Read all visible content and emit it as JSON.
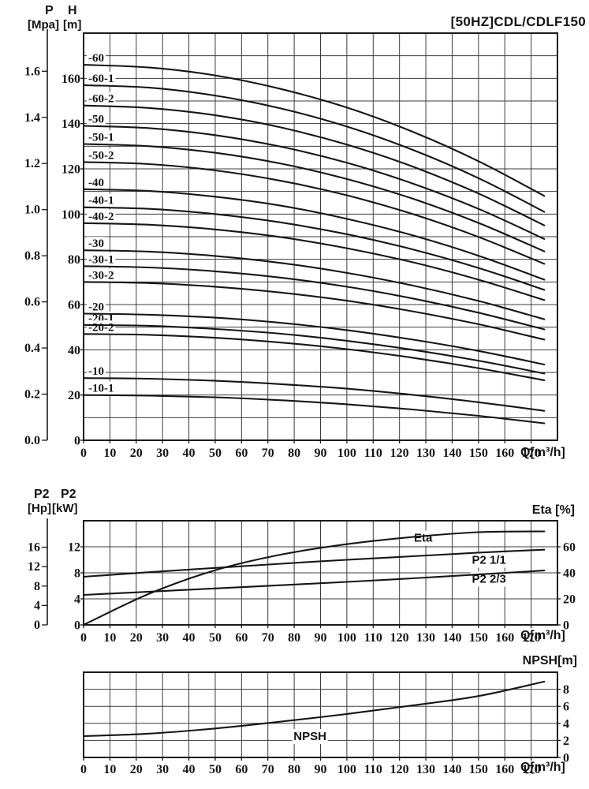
{
  "header": {
    "p": "P",
    "p_unit": "[Mpa]",
    "h": "H",
    "h_unit": "[m]",
    "title": "[50HZ]CDL/CDLF150"
  },
  "power_header": {
    "hp": "P2",
    "hp_unit": "[Hp]",
    "kw": "P2",
    "kw_unit": "[kW]",
    "eta_axis": "Eta [%]"
  },
  "npsh_header": {
    "axis": "NPSH[m]"
  },
  "q_label": "Q[m³/h]",
  "chart_data": [
    {
      "type": "line",
      "title": "[50HZ]CDL/CDLF150",
      "xlabel": "Q[m³/h]",
      "ylabel_left_outer": "P [Mpa]",
      "ylabel_left_inner": "H [m]",
      "xlim": [
        0,
        180
      ],
      "ylim": [
        0,
        180
      ],
      "grid_step_x": 10,
      "grid_step_y": 10,
      "x_ticks": [
        0,
        10,
        20,
        30,
        40,
        50,
        60,
        70,
        80,
        90,
        100,
        110,
        120,
        130,
        140,
        150,
        160,
        170
      ],
      "h_ticks": [
        0,
        20,
        40,
        60,
        80,
        100,
        120,
        140,
        160
      ],
      "p_ticks": [
        "0.0",
        "0.2",
        "0.4",
        "0.6",
        "0.8",
        "1.0",
        "1.2",
        "1.4",
        "1.6"
      ],
      "m_per_mpa": 101.97,
      "q_points": [
        0,
        25,
        50,
        75,
        100,
        125,
        150,
        175
      ],
      "series": [
        {
          "name": "-60",
          "h": [
            166,
            164.8,
            161.3,
            155.3,
            147.1,
            136.4,
            123.4,
            108
          ]
        },
        {
          "name": "-60-1",
          "h": [
            157,
            155.9,
            152.4,
            146.7,
            138.7,
            128.4,
            115.9,
            101
          ]
        },
        {
          "name": "-60-2",
          "h": [
            148,
            146.9,
            143.7,
            138.3,
            130.7,
            121,
            109.1,
            95
          ]
        },
        {
          "name": "-50",
          "h": [
            139,
            138,
            134.9,
            129.8,
            122.7,
            113.5,
            102.3,
            89
          ]
        },
        {
          "name": "-50-1",
          "h": [
            131,
            130,
            127.1,
            122.3,
            115.5,
            106.8,
            96.1,
            83.5
          ]
        },
        {
          "name": "-50-2",
          "h": [
            123,
            122.1,
            119.3,
            114.7,
            108.3,
            100,
            89.9,
            78
          ]
        },
        {
          "name": "-40",
          "h": [
            111,
            110.2,
            107.7,
            103.7,
            97.9,
            90.6,
            81.6,
            71
          ]
        },
        {
          "name": "-40-1",
          "h": [
            103,
            102.3,
            100,
            96.3,
            91.1,
            84.4,
            76.2,
            66.5
          ]
        },
        {
          "name": "-40-2",
          "h": [
            96,
            95.3,
            93.2,
            89.8,
            84.9,
            78.7,
            71,
            62
          ]
        },
        {
          "name": "-30",
          "h": [
            84,
            83.4,
            81.5,
            78.4,
            74,
            68.4,
            61.6,
            53.5
          ]
        },
        {
          "name": "-30-1",
          "h": [
            77,
            76.4,
            74.7,
            71.9,
            67.9,
            62.7,
            56.4,
            49
          ]
        },
        {
          "name": "-30-2",
          "h": [
            70,
            69.5,
            67.9,
            65.3,
            61.7,
            57,
            51.3,
            44.5
          ]
        },
        {
          "name": "-20",
          "h": [
            56,
            55.5,
            54.2,
            51.9,
            48.7,
            44.5,
            39.5,
            33.5
          ]
        },
        {
          "name": "-20-1",
          "h": [
            51,
            50.6,
            49.2,
            47.1,
            44,
            40,
            35.2,
            29.5
          ]
        },
        {
          "name": "-20-2",
          "h": [
            47,
            46.6,
            45.3,
            43.2,
            40.3,
            36.5,
            31.9,
            26.5
          ]
        },
        {
          "name": "-10",
          "h": [
            27.5,
            27.2,
            26.3,
            24.8,
            22.8,
            20.1,
            16.8,
            13
          ]
        },
        {
          "name": "-10-1",
          "h": [
            20,
            19.7,
            19,
            17.7,
            15.9,
            13.6,
            10.8,
            7.5
          ]
        }
      ]
    },
    {
      "type": "line",
      "xlabel": "Q[m³/h]",
      "ylabel_left_outer": "P2 [Hp]",
      "ylabel_left_inner": "P2 [kW]",
      "ylabel_right": "Eta [%]",
      "xlim": [
        0,
        180
      ],
      "ylim_kw": [
        0,
        16
      ],
      "grid_step_x": 10,
      "grid_step_kw": 4,
      "x_ticks": [
        0,
        10,
        20,
        30,
        40,
        50,
        60,
        70,
        80,
        90,
        100,
        110,
        120,
        130,
        140,
        150,
        160,
        170
      ],
      "kw_ticks": [
        0,
        4,
        8,
        12
      ],
      "hp_ticks": [
        0,
        4,
        8,
        12,
        16
      ],
      "eta_ticks": [
        0,
        20,
        40,
        60
      ],
      "kw_per_hp": 0.7457,
      "kw_per_eta_pct": 0.2,
      "q_points": [
        0,
        25,
        50,
        75,
        100,
        125,
        150,
        175
      ],
      "series": [
        {
          "name": "Eta",
          "scale": "eta",
          "values": [
            0,
            24,
            42,
            54,
            62,
            67.5,
            71.2,
            71.8
          ]
        },
        {
          "name": "P2 1/1",
          "scale": "kw",
          "values": [
            7.4,
            8.1,
            8.75,
            9.4,
            10,
            10.55,
            11.1,
            11.55
          ]
        },
        {
          "name": "P2 2/3",
          "scale": "kw",
          "values": [
            4.6,
            5.1,
            5.6,
            6.1,
            6.6,
            7.15,
            7.75,
            8.35
          ]
        }
      ],
      "annotations": [
        {
          "text": "Eta",
          "q": 129,
          "kw": 13.4
        },
        {
          "text": "P2 1/1",
          "q": 154,
          "kw": 10.0
        },
        {
          "text": "P2 2/3",
          "q": 154,
          "kw": 7.1
        }
      ]
    },
    {
      "type": "line",
      "xlabel": "Q[m³/h]",
      "ylabel_right": "NPSH[m]",
      "xlim": [
        0,
        180
      ],
      "ylim": [
        0,
        10
      ],
      "grid_step_x": 10,
      "grid_step_y": 2,
      "x_ticks": [
        0,
        10,
        20,
        30,
        40,
        50,
        60,
        70,
        80,
        90,
        100,
        110,
        120,
        130,
        140,
        150,
        160,
        170
      ],
      "npsh_ticks": [
        0,
        2,
        4,
        6,
        8
      ],
      "q_points": [
        0,
        25,
        50,
        75,
        100,
        125,
        150,
        175
      ],
      "series": [
        {
          "name": "NPSH",
          "values": [
            2.5,
            2.8,
            3.4,
            4.2,
            5.1,
            6.1,
            7.2,
            8.9
          ]
        }
      ],
      "annotations": [
        {
          "text": "NPSH",
          "q": 86,
          "m": 2.5
        }
      ]
    }
  ]
}
